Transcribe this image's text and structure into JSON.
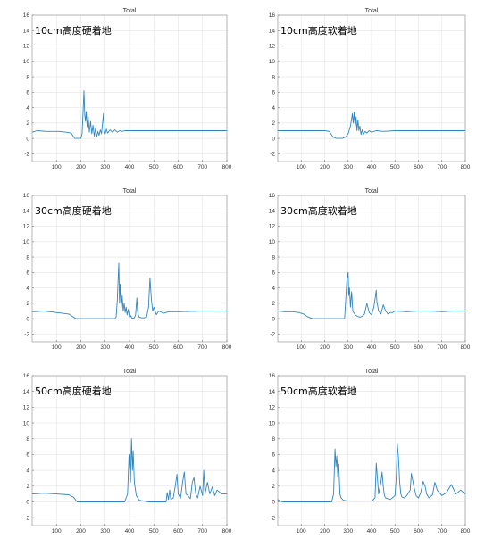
{
  "chart_data": [
    {
      "type": "line",
      "title": "Total",
      "annotation": "10cm高度硬着地",
      "xlim": [
        0,
        800
      ],
      "ylim": [
        -3,
        16
      ],
      "xticks": [
        100,
        200,
        300,
        400,
        500,
        600,
        700,
        800
      ],
      "yticks": [
        -2,
        0,
        2,
        4,
        6,
        8,
        10,
        12,
        14,
        16
      ],
      "grid": true,
      "series": [
        {
          "color": "#2e86c1",
          "x": [
            0,
            20,
            60,
            110,
            140,
            160,
            175,
            200,
            205,
            210,
            213,
            216,
            219,
            222,
            226,
            230,
            235,
            240,
            245,
            250,
            255,
            260,
            265,
            270,
            275,
            280,
            285,
            290,
            293,
            296,
            300,
            305,
            310,
            320,
            330,
            340,
            350,
            360,
            370,
            380,
            400,
            450,
            500,
            600,
            700,
            800
          ],
          "y": [
            0.8,
            1.0,
            0.9,
            0.9,
            0.8,
            0.7,
            0.0,
            0.0,
            0.6,
            4.0,
            6.2,
            3.0,
            2.2,
            3.5,
            1.5,
            2.8,
            0.8,
            2.2,
            0.6,
            1.7,
            0.3,
            1.3,
            0.2,
            0.9,
            0.4,
            1.1,
            0.6,
            2.2,
            3.2,
            1.0,
            0.6,
            1.2,
            0.7,
            1.1,
            0.8,
            1.1,
            0.8,
            1.0,
            0.9,
            1.0,
            1.0,
            1.0,
            1.0,
            1.0,
            1.0,
            1.0
          ]
        }
      ]
    },
    {
      "type": "line",
      "title": "Total",
      "annotation": "10cm高度软着地",
      "xlim": [
        0,
        800
      ],
      "ylim": [
        -3,
        16
      ],
      "xticks": [
        100,
        200,
        300,
        400,
        500,
        600,
        700,
        800
      ],
      "yticks": [
        -2,
        0,
        2,
        4,
        6,
        8,
        10,
        12,
        14,
        16
      ],
      "grid": true,
      "series": [
        {
          "color": "#2e86c1",
          "x": [
            0,
            50,
            150,
            200,
            220,
            235,
            250,
            275,
            290,
            300,
            310,
            318,
            322,
            326,
            330,
            334,
            338,
            342,
            346,
            350,
            355,
            360,
            365,
            372,
            380,
            390,
            400,
            420,
            450,
            500,
            600,
            700,
            800
          ],
          "y": [
            1.0,
            1.0,
            1.0,
            1.0,
            0.9,
            0.2,
            0.0,
            0.0,
            0.2,
            0.6,
            1.6,
            3.2,
            2.0,
            3.4,
            1.5,
            2.8,
            1.0,
            2.4,
            1.0,
            1.6,
            0.5,
            1.1,
            0.5,
            0.9,
            0.7,
            1.0,
            0.8,
            1.0,
            0.9,
            1.0,
            1.0,
            1.0,
            1.0
          ]
        }
      ]
    },
    {
      "type": "line",
      "title": "Total",
      "annotation": "30cm高度硬着地",
      "xlim": [
        0,
        800
      ],
      "ylim": [
        -3,
        16
      ],
      "xticks": [
        100,
        200,
        300,
        400,
        500,
        600,
        700,
        800
      ],
      "yticks": [
        -2,
        0,
        2,
        4,
        6,
        8,
        10,
        12,
        14,
        16
      ],
      "grid": true,
      "series": [
        {
          "color": "#2e86c1",
          "x": [
            0,
            50,
            100,
            150,
            180,
            200,
            250,
            300,
            340,
            345,
            350,
            353,
            356,
            359,
            362,
            366,
            370,
            374,
            378,
            382,
            386,
            390,
            395,
            400,
            405,
            410,
            420,
            425,
            430,
            433,
            436,
            440,
            450,
            460,
            470,
            478,
            484,
            490,
            495,
            500,
            510,
            520,
            540,
            560,
            600,
            700,
            800
          ],
          "y": [
            0.9,
            1.0,
            0.8,
            0.6,
            0.0,
            0.0,
            0.0,
            0.0,
            0.0,
            0.2,
            2.5,
            5.0,
            7.2,
            2.0,
            4.5,
            1.5,
            3.0,
            1.0,
            2.0,
            0.8,
            1.5,
            0.5,
            1.2,
            0.2,
            0.4,
            0.0,
            0.1,
            0.5,
            2.7,
            1.0,
            0.5,
            0.2,
            0.1,
            0.1,
            0.2,
            1.5,
            5.3,
            2.5,
            1.0,
            1.5,
            0.5,
            1.0,
            0.7,
            0.9,
            0.9,
            1.0,
            1.0
          ]
        }
      ]
    },
    {
      "type": "line",
      "title": "Total",
      "annotation": "30cm高度软着地",
      "xlim": [
        0,
        800
      ],
      "ylim": [
        -3,
        16
      ],
      "xticks": [
        100,
        200,
        300,
        400,
        500,
        600,
        700,
        800
      ],
      "yticks": [
        -2,
        0,
        2,
        4,
        6,
        8,
        10,
        12,
        14,
        16
      ],
      "grid": true,
      "series": [
        {
          "color": "#2e86c1",
          "x": [
            0,
            30,
            60,
            90,
            110,
            130,
            150,
            200,
            250,
            285,
            290,
            295,
            300,
            303,
            306,
            310,
            315,
            320,
            330,
            340,
            350,
            360,
            370,
            380,
            390,
            400,
            410,
            420,
            423,
            430,
            440,
            450,
            460,
            470,
            480,
            490,
            500,
            550,
            600,
            650,
            700,
            750,
            800
          ],
          "y": [
            1.0,
            0.9,
            0.9,
            0.8,
            0.6,
            0.2,
            0.0,
            0.0,
            0.0,
            0.0,
            2.5,
            5.0,
            6.0,
            3.0,
            4.0,
            1.5,
            3.5,
            1.0,
            0.5,
            0.3,
            0.2,
            0.3,
            0.6,
            2.0,
            0.8,
            0.5,
            1.5,
            3.7,
            2.2,
            1.0,
            0.6,
            1.8,
            1.0,
            0.6,
            0.8,
            0.8,
            1.0,
            0.9,
            1.0,
            1.0,
            0.9,
            1.0,
            1.0
          ]
        }
      ]
    },
    {
      "type": "line",
      "title": "Total",
      "annotation": "50cm高度硬着地",
      "xlim": [
        0,
        800
      ],
      "ylim": [
        -3,
        16
      ],
      "xticks": [
        100,
        200,
        300,
        400,
        500,
        600,
        700,
        800
      ],
      "yticks": [
        -2,
        0,
        2,
        4,
        6,
        8,
        10,
        12,
        14,
        16
      ],
      "grid": true,
      "series": [
        {
          "color": "#2e86c1",
          "x": [
            0,
            50,
            100,
            150,
            170,
            185,
            200,
            250,
            300,
            350,
            380,
            392,
            398,
            404,
            408,
            412,
            415,
            420,
            428,
            440,
            480,
            520,
            550,
            555,
            560,
            565,
            570,
            580,
            588,
            595,
            600,
            610,
            618,
            625,
            632,
            640,
            650,
            658,
            665,
            672,
            680,
            690,
            700,
            705,
            710,
            720,
            730,
            740,
            750,
            760,
            780,
            800
          ],
          "y": [
            1.0,
            1.1,
            1.0,
            0.9,
            0.6,
            0.0,
            0.0,
            0.0,
            0.0,
            0.0,
            0.0,
            1.0,
            6.0,
            2.5,
            8.0,
            4.0,
            6.5,
            2.5,
            0.8,
            0.2,
            0.0,
            0.0,
            0.0,
            1.2,
            0.3,
            1.5,
            0.3,
            0.5,
            2.0,
            3.5,
            1.0,
            0.5,
            2.5,
            3.8,
            1.0,
            0.8,
            0.4,
            2.5,
            3.1,
            1.0,
            0.5,
            2.0,
            0.8,
            4.0,
            1.0,
            2.5,
            1.0,
            1.9,
            0.8,
            1.5,
            1.0,
            1.0
          ]
        }
      ]
    },
    {
      "type": "line",
      "title": "Total",
      "annotation": "50cm高度软着地",
      "xlim": [
        0,
        800
      ],
      "ylim": [
        -3,
        16
      ],
      "xticks": [
        100,
        200,
        300,
        400,
        500,
        600,
        700,
        800
      ],
      "yticks": [
        -2,
        0,
        2,
        4,
        6,
        8,
        10,
        12,
        14,
        16
      ],
      "grid": true,
      "series": [
        {
          "color": "#2e86c1",
          "x": [
            0,
            10,
            20,
            50,
            100,
            150,
            200,
            230,
            238,
            244,
            248,
            252,
            256,
            260,
            265,
            270,
            280,
            300,
            350,
            400,
            415,
            420,
            425,
            430,
            440,
            445,
            450,
            455,
            460,
            480,
            500,
            505,
            510,
            515,
            520,
            525,
            530,
            540,
            550,
            565,
            570,
            580,
            590,
            600,
            610,
            620,
            628,
            635,
            645,
            660,
            670,
            680,
            700,
            720,
            740,
            760,
            780,
            800
          ],
          "y": [
            0.3,
            0.1,
            0.0,
            0.0,
            0.0,
            0.0,
            0.0,
            0.0,
            1.0,
            6.7,
            4.5,
            5.8,
            3.2,
            4.8,
            1.0,
            0.5,
            0.2,
            0.1,
            0.1,
            0.1,
            0.5,
            4.9,
            3.0,
            1.0,
            2.5,
            3.8,
            2.0,
            0.8,
            0.5,
            0.3,
            0.8,
            3.0,
            7.3,
            5.5,
            2.5,
            1.0,
            0.6,
            0.5,
            0.8,
            1.5,
            3.6,
            2.0,
            0.8,
            0.5,
            1.2,
            2.6,
            2.0,
            1.0,
            0.5,
            0.9,
            2.5,
            1.5,
            0.8,
            1.2,
            2.2,
            1.0,
            1.5,
            1.0
          ]
        }
      ]
    }
  ]
}
